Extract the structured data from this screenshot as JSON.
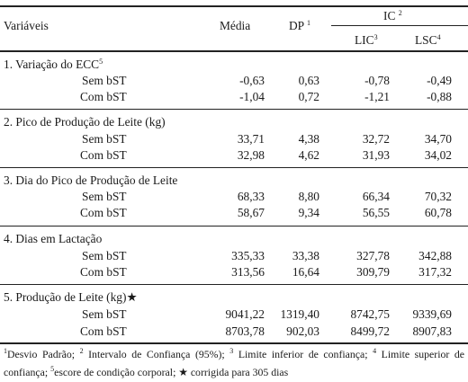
{
  "table": {
    "header": {
      "variables": "Variáveis",
      "mean": "Média",
      "sd": "DP",
      "sd_note": "1",
      "ci": "IC",
      "ci_note": "2",
      "lic": "LIC",
      "lic_note": "3",
      "lsc": "LSC",
      "lsc_note": "4"
    },
    "sections": [
      {
        "label": "1. Variação do ECC",
        "note": "5",
        "rows": [
          {
            "label": "Sem bST",
            "media": "-0,63",
            "dp": "0,63",
            "lic": "-0,78",
            "lsc": "-0,49"
          },
          {
            "label": "Com bST",
            "media": "-1,04",
            "dp": "0,72",
            "lic": "-1,21",
            "lsc": "-0,88"
          }
        ]
      },
      {
        "label": "2. Pico de Produção de Leite (kg)",
        "note": "",
        "rows": [
          {
            "label": "Sem bST",
            "media": "33,71",
            "dp": "4,38",
            "lic": "32,72",
            "lsc": "34,70"
          },
          {
            "label": "Com bST",
            "media": "32,98",
            "dp": "4,62",
            "lic": "31,93",
            "lsc": "34,02"
          }
        ]
      },
      {
        "label": "3. Dia do Pico de Produção de Leite",
        "note": "",
        "rows": [
          {
            "label": "Sem bST",
            "media": "68,33",
            "dp": "8,80",
            "lic": "66,34",
            "lsc": "70,32"
          },
          {
            "label": "Com bST",
            "media": "58,67",
            "dp": "9,34",
            "lic": "56,55",
            "lsc": "60,78"
          }
        ]
      },
      {
        "label": "4. Dias em Lactação",
        "note": "",
        "rows": [
          {
            "label": "Sem bST",
            "media": "335,33",
            "dp": "33,38",
            "lic": "327,78",
            "lsc": "342,88"
          },
          {
            "label": "Com bST",
            "media": "313,56",
            "dp": "16,64",
            "lic": "309,79",
            "lsc": "317,32"
          }
        ]
      },
      {
        "label": "5. Produção de Leite (kg)★",
        "note": "",
        "rows": [
          {
            "label": "Sem bST",
            "media": "9041,22",
            "dp": "1319,40",
            "lic": "8742,75",
            "lsc": "9339,69"
          },
          {
            "label": "Com bST",
            "media": "8703,78",
            "dp": "902,03",
            "lic": "8499,72",
            "lsc": "8907,83"
          }
        ]
      }
    ],
    "footnote": {
      "n1": "1",
      "t1": "Desvio Padrão; ",
      "n2": "2",
      "t2": " Intervalo de Confiança (95%); ",
      "n3": "3",
      "t3": " Limite inferior de confiança; ",
      "n4": "4",
      "t4": " Limite superior de confiança; ",
      "n5": "5",
      "t5": "escore de condição corporal; ★ corrigida para 305 dias"
    }
  }
}
